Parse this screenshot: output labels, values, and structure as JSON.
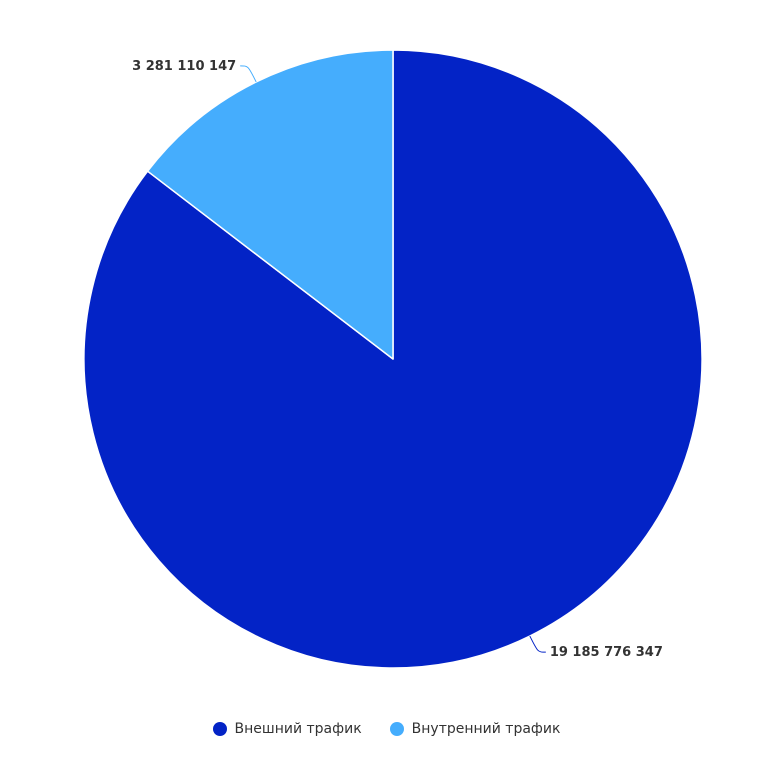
{
  "chart_data": {
    "type": "pie",
    "title": "",
    "start_angle_deg": 0,
    "direction": "clockwise",
    "series": [
      {
        "name": "Внешний трафик",
        "value": 19185776347,
        "label": "19 185 776 347",
        "color": "#0323c6"
      },
      {
        "name": "Внутренний трафик",
        "value": 3281110147,
        "label": "3 281 110 147",
        "color": "#45adfd"
      }
    ],
    "legend_position": "bottom"
  },
  "legend": {
    "items": [
      {
        "label": "Внешний трафик",
        "color": "#0323c6"
      },
      {
        "label": "Внутренний трафик",
        "color": "#45adfd"
      }
    ]
  }
}
